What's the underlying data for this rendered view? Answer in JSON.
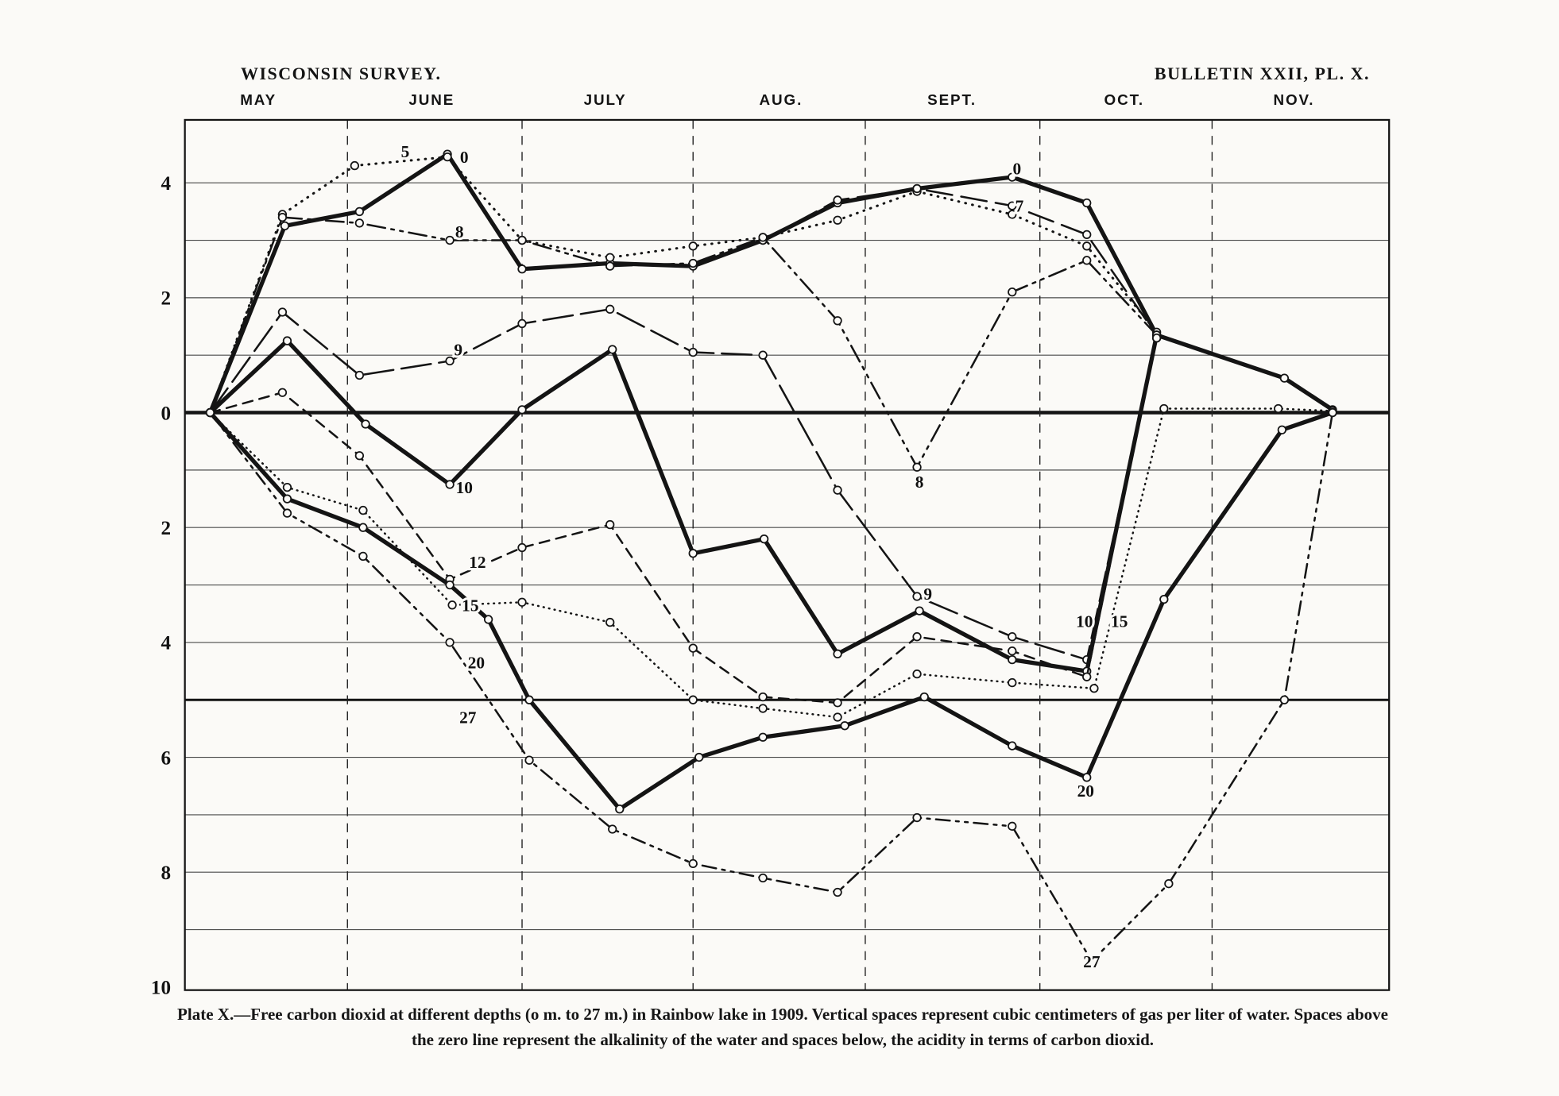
{
  "header": {
    "left": "WISCONSIN SURVEY.",
    "right": "BULLETIN XXII, PL. X."
  },
  "caption": {
    "text": "Plate X.—Free carbon dioxid at different depths (o m. to 27 m.) in Rainbow lake in 1909.  Vertical spaces represent cubic centimeters of gas per liter of water.  Spaces above the zero line represent the alkalinity of the water and spaces below, the acidity in terms of carbon dioxid."
  },
  "colors": {
    "ink": "#141414",
    "paper": "#fbfaf7",
    "grid": "#4a4a4a"
  },
  "chart_data": {
    "type": "line",
    "title": "Free carbon dioxid at different depths (0 m. to 27 m.) in Rainbow lake in 1909",
    "xlabel": "",
    "ylabel": "cubic centimeters of gas per liter of water (above zero = alkalinity, below zero = acidity as carbon dioxid)",
    "ylim": [
      -10.1,
      5.1
    ],
    "grid": "on",
    "months": [
      "MAY",
      "JUNE",
      "JULY",
      "AUG.",
      "SEPT.",
      "OCT.",
      "NOV."
    ],
    "month_centers": [
      0.061,
      0.205,
      0.349,
      0.495,
      0.637,
      0.78,
      0.921
    ],
    "month_boundaries": [
      0.135,
      0.28,
      0.422,
      0.565,
      0.71,
      0.853
    ],
    "y_ticks": [
      {
        "v": 4,
        "label": "4"
      },
      {
        "v": 2,
        "label": "2"
      },
      {
        "v": 0,
        "label": "0"
      },
      {
        "v": -2,
        "label": "2"
      },
      {
        "v": -4,
        "label": "4"
      },
      {
        "v": -6,
        "label": "6"
      },
      {
        "v": -8,
        "label": "8"
      },
      {
        "v": -10,
        "label": "10"
      }
    ],
    "series": [
      {
        "name": "0",
        "depth_m": 0,
        "style": "heavy-solid",
        "dash": "",
        "width": 4.2,
        "points": [
          [
            0.021,
            0
          ],
          [
            0.083,
            3.25
          ],
          [
            0.145,
            3.5
          ],
          [
            0.218,
            4.5
          ],
          [
            0.28,
            2.5
          ],
          [
            0.353,
            2.6
          ],
          [
            0.422,
            2.55
          ],
          [
            0.48,
            3.0
          ],
          [
            0.542,
            3.65
          ],
          [
            0.608,
            3.9
          ],
          [
            0.687,
            4.1
          ],
          [
            0.749,
            3.65
          ],
          [
            0.807,
            1.35
          ],
          [
            0.913,
            0.6
          ],
          [
            0.953,
            0.05
          ]
        ]
      },
      {
        "name": "5",
        "depth_m": 5,
        "style": "dotted",
        "dash": "0.6 6.5",
        "width": 2.4,
        "points": [
          [
            0.021,
            0
          ],
          [
            0.081,
            3.45
          ],
          [
            0.141,
            4.3
          ],
          [
            0.218,
            4.45
          ],
          [
            0.28,
            3.0
          ],
          [
            0.353,
            2.7
          ],
          [
            0.422,
            2.9
          ],
          [
            0.48,
            3.05
          ],
          [
            0.542,
            3.35
          ],
          [
            0.608,
            3.85
          ],
          [
            0.687,
            3.45
          ],
          [
            0.749,
            2.9
          ],
          [
            0.807,
            1.4
          ]
        ]
      },
      {
        "name": "7",
        "depth_m": 7,
        "style": "long-dash",
        "dash": "26 9",
        "width": 2,
        "points": [
          [
            0.48,
            3.0
          ],
          [
            0.542,
            3.7
          ],
          [
            0.608,
            3.9
          ],
          [
            0.687,
            3.6
          ],
          [
            0.749,
            3.1
          ],
          [
            0.807,
            1.35
          ]
        ]
      },
      {
        "name": "8",
        "depth_m": 8,
        "style": "dash-dot-dot",
        "dash": "18 6 3 6 3 6",
        "width": 2,
        "points": [
          [
            0.021,
            0
          ],
          [
            0.081,
            3.4
          ],
          [
            0.145,
            3.3
          ],
          [
            0.22,
            3.0
          ],
          [
            0.28,
            3.0
          ],
          [
            0.353,
            2.55
          ],
          [
            0.422,
            2.6
          ],
          [
            0.48,
            3.05
          ],
          [
            0.542,
            1.6
          ],
          [
            0.608,
            -0.95
          ],
          [
            0.687,
            2.1
          ],
          [
            0.749,
            2.65
          ],
          [
            0.807,
            1.35
          ]
        ]
      },
      {
        "name": "9",
        "depth_m": 9,
        "style": "long-dash",
        "dash": "30 8",
        "width": 2,
        "points": [
          [
            0.021,
            0
          ],
          [
            0.081,
            1.75
          ],
          [
            0.145,
            0.65
          ],
          [
            0.22,
            0.9
          ],
          [
            0.28,
            1.55
          ],
          [
            0.353,
            1.8
          ],
          [
            0.422,
            1.05
          ],
          [
            0.48,
            1.0
          ],
          [
            0.542,
            -1.35
          ],
          [
            0.608,
            -3.2
          ],
          [
            0.687,
            -3.9
          ],
          [
            0.749,
            -4.3
          ],
          [
            0.807,
            1.3
          ]
        ]
      },
      {
        "name": "10",
        "depth_m": 10,
        "style": "heavy-solid",
        "dash": "",
        "width": 4.2,
        "points": [
          [
            0.021,
            0
          ],
          [
            0.085,
            1.25
          ],
          [
            0.15,
            -0.2
          ],
          [
            0.22,
            -1.25
          ],
          [
            0.28,
            0.05
          ],
          [
            0.355,
            1.1
          ],
          [
            0.422,
            -2.45
          ],
          [
            0.481,
            -2.2
          ],
          [
            0.542,
            -4.2
          ],
          [
            0.61,
            -3.45
          ],
          [
            0.687,
            -4.3
          ],
          [
            0.749,
            -4.5
          ],
          [
            0.807,
            1.35
          ]
        ]
      },
      {
        "name": "12",
        "depth_m": 12,
        "style": "medium-dash",
        "dash": "10 7",
        "width": 2,
        "points": [
          [
            0.021,
            0
          ],
          [
            0.081,
            0.35
          ],
          [
            0.145,
            -0.75
          ],
          [
            0.22,
            -2.9
          ],
          [
            0.28,
            -2.35
          ],
          [
            0.353,
            -1.95
          ],
          [
            0.422,
            -4.1
          ],
          [
            0.48,
            -4.95
          ],
          [
            0.542,
            -5.05
          ],
          [
            0.608,
            -3.9
          ],
          [
            0.687,
            -4.15
          ],
          [
            0.749,
            -4.6
          ],
          [
            0.807,
            1.3
          ]
        ]
      },
      {
        "name": "15",
        "depth_m": 15,
        "style": "fine-dotted",
        "dash": "0.6 5",
        "width": 2,
        "points": [
          [
            0.021,
            0
          ],
          [
            0.085,
            -1.3
          ],
          [
            0.148,
            -1.7
          ],
          [
            0.222,
            -3.35
          ],
          [
            0.28,
            -3.3
          ],
          [
            0.353,
            -3.65
          ],
          [
            0.422,
            -5.0
          ],
          [
            0.48,
            -5.15
          ],
          [
            0.542,
            -5.3
          ],
          [
            0.608,
            -4.55
          ],
          [
            0.687,
            -4.7
          ],
          [
            0.755,
            -4.8
          ],
          [
            0.813,
            0.07
          ],
          [
            0.908,
            0.07
          ],
          [
            0.953,
            0.03
          ]
        ]
      },
      {
        "name": "20",
        "depth_m": 20,
        "style": "heavy-solid",
        "dash": "",
        "width": 4.2,
        "points": [
          [
            0.021,
            0
          ],
          [
            0.085,
            -1.5
          ],
          [
            0.148,
            -2.0
          ],
          [
            0.22,
            -3.0
          ],
          [
            0.252,
            -3.6
          ],
          [
            0.286,
            -5.0
          ],
          [
            0.361,
            -6.9
          ],
          [
            0.427,
            -6.0
          ],
          [
            0.48,
            -5.65
          ],
          [
            0.548,
            -5.45
          ],
          [
            0.614,
            -4.95
          ],
          [
            0.687,
            -5.8
          ],
          [
            0.749,
            -6.35
          ],
          [
            0.813,
            -3.25
          ],
          [
            0.911,
            -0.3
          ],
          [
            0.953,
            0.0
          ]
        ]
      },
      {
        "name": "27",
        "depth_m": 27,
        "style": "dash-dot-dot",
        "dash": "14 6 3 6 3 6",
        "width": 2,
        "points": [
          [
            0.021,
            0
          ],
          [
            0.085,
            -1.75
          ],
          [
            0.148,
            -2.5
          ],
          [
            0.22,
            -4.0
          ],
          [
            0.286,
            -6.05
          ],
          [
            0.355,
            -7.25
          ],
          [
            0.422,
            -7.85
          ],
          [
            0.48,
            -8.1
          ],
          [
            0.542,
            -8.35
          ],
          [
            0.608,
            -7.05
          ],
          [
            0.687,
            -7.2
          ],
          [
            0.753,
            -9.55
          ],
          [
            0.817,
            -8.2
          ],
          [
            0.913,
            -5.0
          ],
          [
            0.953,
            0.0
          ]
        ]
      }
    ],
    "annotations": [
      {
        "text": "5",
        "x": 0.183,
        "y": 4.55
      },
      {
        "text": "0",
        "x": 0.232,
        "y": 4.45
      },
      {
        "text": "8",
        "x": 0.228,
        "y": 3.15
      },
      {
        "text": "9",
        "x": 0.227,
        "y": 1.1
      },
      {
        "text": "10",
        "x": 0.232,
        "y": -1.3
      },
      {
        "text": "12",
        "x": 0.243,
        "y": -2.6
      },
      {
        "text": "15",
        "x": 0.237,
        "y": -3.35
      },
      {
        "text": "20",
        "x": 0.242,
        "y": -4.35
      },
      {
        "text": "27",
        "x": 0.235,
        "y": -5.3
      },
      {
        "text": "0",
        "x": 0.691,
        "y": 4.25
      },
      {
        "text": "7",
        "x": 0.693,
        "y": 3.6
      },
      {
        "text": "8",
        "x": 0.61,
        "y": -1.2
      },
      {
        "text": "9",
        "x": 0.617,
        "y": -3.15
      },
      {
        "text": "10",
        "x": 0.747,
        "y": -3.63
      },
      {
        "text": "15",
        "x": 0.776,
        "y": -3.63
      },
      {
        "text": "20",
        "x": 0.748,
        "y": -6.58
      },
      {
        "text": "27",
        "x": 0.753,
        "y": -9.55
      }
    ]
  }
}
